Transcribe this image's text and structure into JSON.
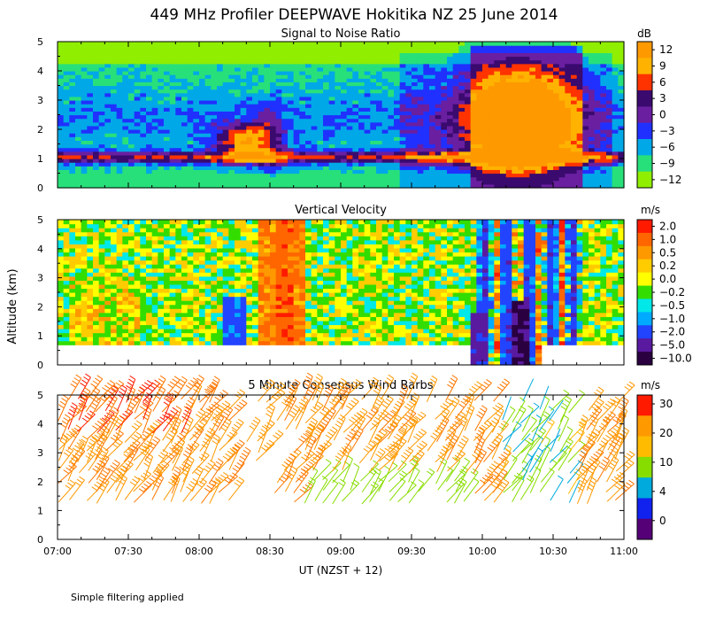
{
  "page": {
    "title": "449 MHz Profiler DEEPWAVE Hokitika NZ 25 June 2014",
    "ylabel": "Altitude (km)",
    "xlabel": "UT   (NZST + 12)",
    "footnote": "Simple filtering applied"
  },
  "chart_data": [
    {
      "type": "heatmap",
      "title": "Signal to Noise Ratio",
      "unit": "dB",
      "xlim": [
        7.0,
        11.0
      ],
      "ylim": [
        0,
        5
      ],
      "x_ticks": [
        "07:00",
        "07:30",
        "08:00",
        "08:30",
        "09:00",
        "09:30",
        "10:00",
        "10:30",
        "11:00"
      ],
      "y_ticks": [
        "0",
        "1",
        "2",
        "3",
        "4",
        "5"
      ],
      "colorbar": {
        "labels": [
          "12",
          "9",
          "6",
          "3",
          "0",
          "−3",
          "−6",
          "−9",
          "−12"
        ],
        "colors": [
          "#ff9900",
          "#ffb300",
          "#ff3300",
          "#3a0a6e",
          "#6a1fa0",
          "#2030ff",
          "#00a8e8",
          "#28e07a",
          "#90ee00"
        ]
      }
    },
    {
      "type": "heatmap",
      "title": "Vertical Velocity",
      "unit": "m/s",
      "xlim": [
        7.0,
        11.0
      ],
      "ylim": [
        0,
        5
      ],
      "x_ticks": [
        "07:00",
        "07:30",
        "08:00",
        "08:30",
        "09:00",
        "09:30",
        "10:00",
        "10:30",
        "11:00"
      ],
      "y_ticks": [
        "0",
        "1",
        "2",
        "3",
        "4",
        "5"
      ],
      "colorbar": {
        "labels": [
          "2.0",
          "1.0",
          "0.5",
          "0.2",
          "0.0",
          "−0.2",
          "−0.5",
          "−1.0",
          "−2.0",
          "−5.0",
          "−10.0"
        ],
        "colors": [
          "#ff1a00",
          "#ff6600",
          "#ff9900",
          "#ffcc00",
          "#ffff00",
          "#33dd00",
          "#00e8e8",
          "#00aaff",
          "#2244ff",
          "#5a1aa0",
          "#2a0040"
        ]
      }
    },
    {
      "type": "scatter",
      "title": "5 Minute Consensus Wind Barbs",
      "unit": "m/s",
      "xlim": [
        7.0,
        11.0
      ],
      "ylim": [
        0,
        5
      ],
      "x_ticks": [
        "07:00",
        "07:30",
        "08:00",
        "08:30",
        "09:00",
        "09:30",
        "10:00",
        "10:30",
        "11:00"
      ],
      "y_ticks": [
        "0",
        "1",
        "2",
        "3",
        "4",
        "5"
      ],
      "colorbar": {
        "labels": [
          "30",
          "20",
          "10",
          "4",
          "0"
        ],
        "colors": [
          "#ff1a00",
          "#ff9900",
          "#ffbb00",
          "#88dd00",
          "#00aadd",
          "#1122ee",
          "#550077"
        ]
      }
    }
  ]
}
